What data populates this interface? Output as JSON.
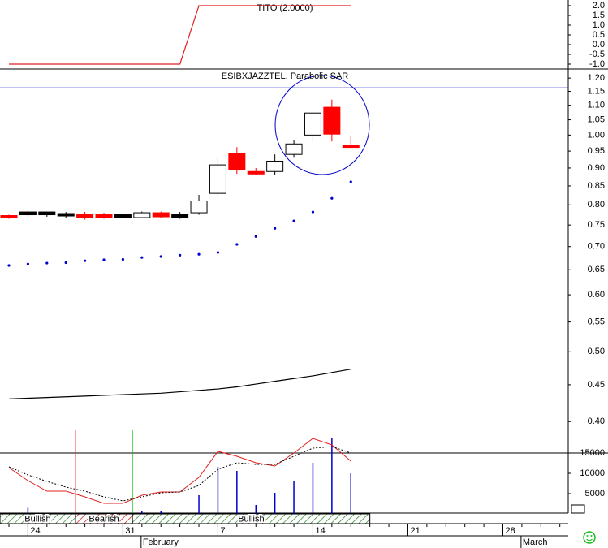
{
  "x_axis": {
    "xlim": [
      -0.47,
      29.44
    ],
    "xticks": [
      {
        "value": 1,
        "label": "24"
      },
      {
        "value": 6,
        "label": "31"
      },
      {
        "value": 11,
        "label": "7"
      },
      {
        "value": 16,
        "label": "14"
      },
      {
        "value": 21,
        "label": "21"
      },
      {
        "value": 26,
        "label": "28"
      }
    ],
    "month_labels": [
      {
        "value": 7,
        "label": "February"
      },
      {
        "value": 27,
        "label": "March"
      }
    ]
  },
  "signals": [
    {
      "label": "Bullish",
      "start": -0.47,
      "end": 3.5,
      "color": "#2e8b2e"
    },
    {
      "label": "Bearish",
      "start": 3.5,
      "end": 6.5,
      "color": "#d02020"
    },
    {
      "label": "Bullish",
      "start": 6.5,
      "end": 19,
      "color": "#2e8b2e"
    }
  ],
  "chart_data": [
    {
      "type": "line",
      "title": "TITO (2.0000)",
      "color": "#e02020",
      "values": [
        -1,
        -1,
        -1,
        -1,
        -1,
        -1,
        -1,
        -1,
        -1,
        -1,
        2,
        2,
        2,
        2,
        2,
        2,
        2,
        2,
        2
      ],
      "ylim": [
        -1.25,
        2.29
      ],
      "yticks": [
        {
          "value": 2,
          "label": "2.0"
        },
        1.5,
        {
          "value": 1,
          "label": "1.0"
        },
        0.5,
        {
          "value": 0,
          "label": "0.0"
        },
        -0.5,
        {
          "value": -1,
          "label": "-1.0"
        }
      ]
    },
    {
      "type": "candlestick",
      "title": "ESIBXJAZZTEL, Parabolic SAR",
      "log_scale": true,
      "open": [
        0.77,
        0.775,
        0.775,
        0.775,
        0.775,
        0.775,
        0.772,
        0.768,
        0.78,
        0.772,
        0.78,
        0.83,
        0.942,
        0.89,
        0.89,
        0.94,
        1.0,
        1.093,
        0.965
      ],
      "high": [
        0.775,
        0.785,
        0.783,
        0.782,
        0.782,
        0.78,
        0.776,
        0.783,
        0.783,
        0.782,
        0.826,
        0.93,
        0.962,
        0.9,
        0.94,
        0.985,
        1.075,
        1.12,
        0.995
      ],
      "low": [
        0.765,
        0.77,
        0.77,
        0.768,
        0.763,
        0.765,
        0.768,
        0.766,
        0.766,
        0.765,
        0.775,
        0.82,
        0.883,
        0.88,
        0.88,
        0.93,
        0.978,
        0.98,
        0.965
      ],
      "close": [
        0.765,
        0.782,
        0.782,
        0.775,
        0.768,
        0.768,
        0.772,
        0.78,
        0.77,
        0.772,
        0.81,
        0.909,
        0.895,
        0.883,
        0.92,
        0.972,
        1.073,
        1.003,
        0.965
      ],
      "colors": [
        "#ff0000",
        "#000000",
        "#000000",
        "#000000",
        "#ff0000",
        "#ff0000",
        "#000000",
        "#ffffff",
        "#ff0000",
        "#000000",
        "#ffffff",
        "#ffffff",
        "#ff0000",
        "#ff0000",
        "#ffffff",
        "#ffffff",
        "#ffffff",
        "#ff0000",
        "#ff0000"
      ],
      "sar": {
        "color": "#0000cc",
        "values": [
          0.659,
          0.662,
          0.664,
          0.665,
          0.669,
          0.671,
          0.672,
          0.676,
          0.678,
          0.681,
          0.683,
          0.687,
          0.705,
          0.723,
          0.742,
          0.76,
          0.782,
          0.817,
          0.861
        ]
      },
      "moving_average": {
        "color": "#000000",
        "values": [
          0.43,
          0.431,
          0.432,
          0.433,
          0.434,
          0.435,
          0.436,
          0.437,
          0.438,
          0.44,
          0.442,
          0.444,
          0.447,
          0.451,
          0.455,
          0.459,
          0.463,
          0.468,
          0.473
        ]
      },
      "reference_line": {
        "value": 1.163,
        "color": "#0000cc"
      },
      "ylim": [
        0.389,
        1.232
      ],
      "yticks": [
        {
          "value": 1.2,
          "label": "1.20"
        },
        1.15,
        {
          "value": 1.1,
          "label": "1.10"
        },
        1.05,
        {
          "value": 1,
          "label": "1.00"
        },
        0.95,
        {
          "value": 0.9,
          "label": "0.90"
        },
        0.85,
        {
          "value": 0.8,
          "label": "0.80"
        },
        0.75,
        {
          "value": 0.7,
          "label": "0.70"
        },
        0.65,
        {
          "value": 0.6,
          "label": "0.60"
        },
        0.55,
        {
          "value": 0.5,
          "label": "0.50"
        },
        0.45,
        {
          "value": 0.4,
          "label": "0.40"
        }
      ]
    },
    {
      "type": "volume",
      "color": "#0000cc",
      "values": [
        0,
        1500,
        0,
        0,
        0,
        0,
        0,
        600,
        600,
        0,
        4600,
        11600,
        10600,
        2200,
        5200,
        8000,
        12600,
        18600,
        10000
      ],
      "series": [
        {
          "color": "#e02020",
          "values": [
            11400,
            8200,
            5600,
            5600,
            4200,
            2600,
            2600,
            4600,
            5400,
            5400,
            9000,
            15400,
            14200,
            12600,
            11800,
            15000,
            18600,
            17000,
            13000
          ]
        },
        {
          "color": "#000000",
          "dashed": true,
          "values": [
            11600,
            9600,
            8000,
            6600,
            5600,
            4200,
            3200,
            4200,
            5200,
            5400,
            7000,
            11000,
            12600,
            12200,
            12200,
            14200,
            16200,
            16600,
            15000
          ]
        }
      ],
      "signal_lines": [
        {
          "x": 3.5,
          "color": "#e02020"
        },
        {
          "x": 6.5,
          "color": "#00bb00"
        }
      ],
      "ylim": [
        0,
        15000
      ],
      "yticks": [
        15000,
        10000,
        5000
      ]
    }
  ]
}
